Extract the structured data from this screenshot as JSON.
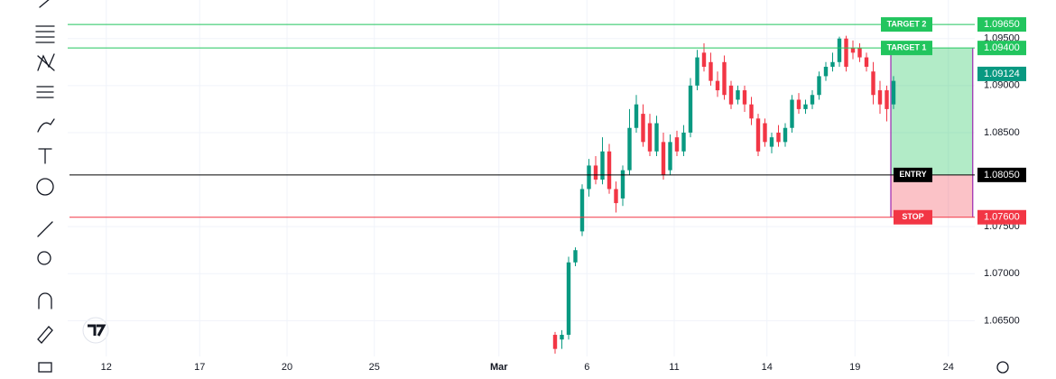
{
  "chart_data": {
    "type": "candlestick",
    "x": [
      72,
      73,
      74,
      75,
      76,
      77,
      78,
      79,
      80,
      81,
      82,
      83,
      84,
      85,
      86,
      87,
      88,
      89,
      90,
      91,
      92,
      93,
      94,
      95,
      96,
      97,
      98,
      99,
      100,
      101,
      102,
      103,
      104,
      105,
      106,
      107,
      108,
      109,
      110,
      111,
      112,
      113,
      114,
      115,
      116,
      117,
      118,
      119,
      120,
      121,
      122
    ],
    "open": [
      1.0635,
      1.063,
      1.0635,
      1.0712,
      1.0745,
      1.079,
      1.0815,
      1.08,
      1.083,
      1.079,
      1.078,
      1.081,
      1.0855,
      1.087,
      1.086,
      1.083,
      1.084,
      1.081,
      1.0845,
      1.083,
      1.085,
      1.09,
      1.0935,
      1.0925,
      1.0905,
      1.0925,
      1.09,
      1.0885,
      1.0895,
      1.088,
      1.0865,
      1.086,
      1.0835,
      1.085,
      1.084,
      1.0855,
      1.0885,
      1.0875,
      1.088,
      1.089,
      1.091,
      1.092,
      1.0925,
      1.095,
      1.094,
      1.094,
      1.093,
      1.0915,
      1.0895,
      1.0895,
      1.088
    ],
    "high": [
      1.0638,
      1.064,
      1.0718,
      1.0728,
      1.0795,
      1.0822,
      1.0825,
      1.0845,
      1.0838,
      1.0798,
      1.0815,
      1.0875,
      1.089,
      1.088,
      1.087,
      1.0868,
      1.085,
      1.0848,
      1.0852,
      1.0858,
      1.0908,
      1.0938,
      1.0945,
      1.0935,
      1.0915,
      1.0932,
      1.0905,
      1.09,
      1.09,
      1.0888,
      1.087,
      1.0865,
      1.085,
      1.0858,
      1.086,
      1.089,
      1.0892,
      1.0885,
      1.0895,
      1.0915,
      1.0925,
      1.0935,
      1.0952,
      1.0953,
      1.0948,
      1.0945,
      1.0935,
      1.0925,
      1.0905,
      1.09,
      1.091
    ],
    "low": [
      1.0615,
      1.062,
      1.063,
      1.0708,
      1.074,
      1.0782,
      1.0795,
      1.0795,
      1.0785,
      1.0765,
      1.0772,
      1.0805,
      1.085,
      1.0835,
      1.0825,
      1.0825,
      1.08,
      1.0805,
      1.0825,
      1.0825,
      1.0845,
      1.0895,
      1.0915,
      1.09,
      1.0888,
      1.0885,
      1.0875,
      1.088,
      1.0872,
      1.0858,
      1.0825,
      1.0835,
      1.0828,
      1.0835,
      1.0835,
      1.085,
      1.087,
      1.087,
      1.0875,
      1.0885,
      1.0905,
      1.0915,
      1.092,
      1.0915,
      1.0928,
      1.0925,
      1.0915,
      1.088,
      1.087,
      1.0862,
      1.0875
    ],
    "close": [
      1.062,
      1.0635,
      1.0712,
      1.0725,
      1.079,
      1.0815,
      1.08,
      1.083,
      1.079,
      1.0775,
      1.081,
      1.0855,
      1.088,
      1.084,
      1.083,
      1.086,
      1.0805,
      1.084,
      1.083,
      1.085,
      1.09,
      1.093,
      1.092,
      1.0905,
      1.0895,
      1.089,
      1.088,
      1.0895,
      1.088,
      1.0865,
      1.083,
      1.084,
      1.0845,
      1.084,
      1.0855,
      1.0885,
      1.0875,
      1.088,
      1.089,
      1.091,
      1.092,
      1.0925,
      1.095,
      1.092,
      1.0935,
      1.093,
      1.092,
      1.089,
      1.088,
      1.0875,
      1.0905
    ],
    "up_color": "#089981",
    "down_color": "#f23645",
    "xlim": [
      0,
      134
    ],
    "xticks": [
      {
        "value": 5.7,
        "label": "12"
      },
      {
        "value": 19.5,
        "label": "17"
      },
      {
        "value": 32.4,
        "label": "20"
      },
      {
        "value": 45.3,
        "label": "25"
      },
      {
        "value": 63.7,
        "label": "Mar"
      },
      {
        "value": 76.7,
        "label": "6"
      },
      {
        "value": 89.6,
        "label": "11"
      },
      {
        "value": 103.3,
        "label": "14"
      },
      {
        "value": 116.3,
        "label": "19"
      },
      {
        "value": 130.1,
        "label": "24"
      }
    ],
    "ylim": [
      1.0612,
      1.0991
    ],
    "yticks": [
      {
        "value": 1.065,
        "label": "1.06500"
      },
      {
        "value": 1.07,
        "label": "1.07000"
      },
      {
        "value": 1.075,
        "label": "1.07500"
      },
      {
        "value": 1.085,
        "label": "1.08500"
      },
      {
        "value": 1.09,
        "label": "1.09000"
      },
      {
        "value": 1.095,
        "label": "1.09500"
      }
    ],
    "grid": true,
    "levels": [
      {
        "name": "TARGET 2",
        "value": 1.0965,
        "label": "1.09650",
        "color": "#22c55e"
      },
      {
        "name": "TARGET 1",
        "value": 1.094,
        "label": "1.09400",
        "color": "#22c55e"
      },
      {
        "name": "ENTRY",
        "value": 1.0805,
        "label": "1.08050",
        "color": "#000000"
      },
      {
        "name": "STOP",
        "value": 1.076,
        "label": "1.07600",
        "color": "#f23645"
      }
    ],
    "position": {
      "start": 121.6,
      "end": 133.7
    },
    "last_price": {
      "value": 1.09124,
      "color": "#089981"
    }
  }
}
